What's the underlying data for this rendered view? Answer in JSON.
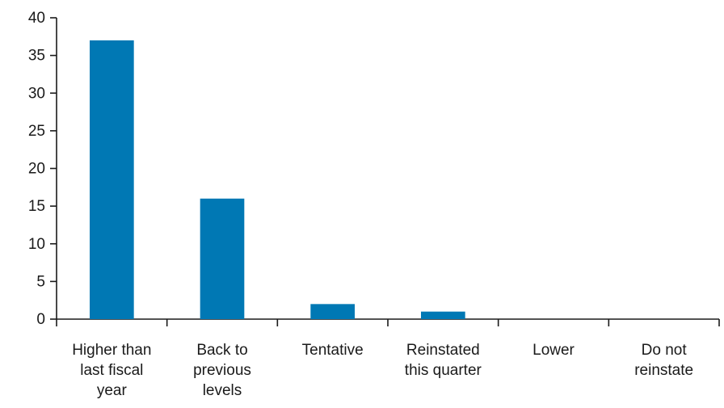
{
  "chart_data": {
    "type": "bar",
    "categories": [
      [
        "Higher than",
        "last fiscal",
        "year"
      ],
      [
        "Back to",
        "previous",
        "levels"
      ],
      [
        "Tentative"
      ],
      [
        "Reinstated",
        "this quarter"
      ],
      [
        "Lower"
      ],
      [
        "Do not",
        "reinstate"
      ]
    ],
    "values": [
      37,
      16,
      2,
      1,
      0,
      0
    ],
    "yticks": [
      "0",
      "5",
      "10",
      "15",
      "20",
      "25",
      "30",
      "35",
      "40"
    ],
    "ylim": [
      0,
      40
    ],
    "grid": false,
    "legend": "none",
    "title": "",
    "xlabel": "",
    "ylabel": "",
    "colors": {
      "bar": "#0078b4",
      "axis": "#1a1a1a"
    }
  }
}
